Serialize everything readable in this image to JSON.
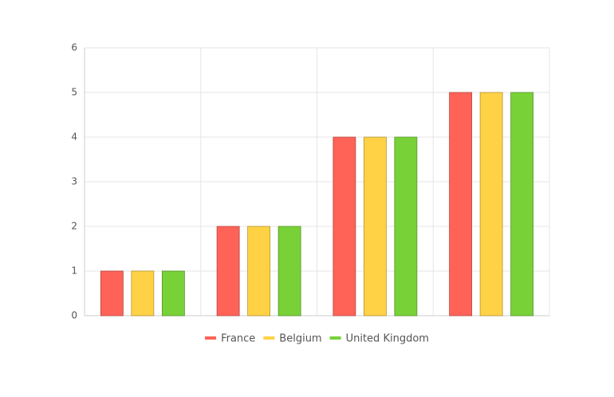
{
  "chart_data": {
    "type": "bar",
    "categories": [
      null,
      null,
      null,
      null
    ],
    "series": [
      {
        "name": "France",
        "color": "#ff6358",
        "values": [
          1,
          2,
          4,
          5
        ]
      },
      {
        "name": "Belgium",
        "color": "#ffd246",
        "values": [
          1,
          2,
          4,
          5
        ]
      },
      {
        "name": "United Kingdom",
        "color": "#78d237",
        "values": [
          1,
          2,
          4,
          5
        ]
      }
    ],
    "ylim": [
      0,
      6
    ],
    "yticks": [
      0,
      1,
      2,
      3,
      4,
      5,
      6
    ],
    "grid": true,
    "legend": "bottom"
  }
}
